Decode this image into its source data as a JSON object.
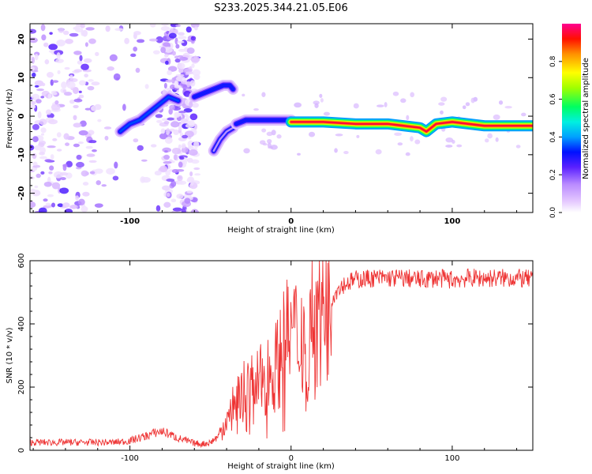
{
  "title": "S233.2025.344.21.05.E06",
  "chart_data": [
    {
      "type": "heatmap",
      "name": "spectrogram",
      "xlabel": "Height of straight line (km)",
      "ylabel": "Frequency (Hz)",
      "xlim": [
        -162,
        150
      ],
      "ylim": [
        -25,
        24
      ],
      "xticks": [
        -100,
        0,
        100
      ],
      "yticks": [
        -20,
        -10,
        0,
        10,
        20
      ],
      "colorbar": {
        "label": "Normalized spectral amplitude",
        "range": [
          0,
          1
        ],
        "ticks": [
          0.0,
          0.2,
          0.4,
          0.6,
          0.8
        ],
        "tick_labels": [
          "0.0",
          "0.2",
          "0.4",
          "0.6",
          "0.8"
        ]
      },
      "ridge_segments": [
        {
          "x": [
            -106,
            -100,
            -94,
            -88,
            -82,
            -76,
            -70
          ],
          "y": [
            -4,
            -2,
            -1,
            1,
            3,
            5,
            4
          ],
          "amp": 0.35
        },
        {
          "x": [
            -60,
            -54,
            -48,
            -42,
            -38,
            -36
          ],
          "y": [
            5,
            6,
            7,
            8,
            8,
            7
          ],
          "amp": 0.3
        },
        {
          "x": [
            -48,
            -44,
            -40,
            -36
          ],
          "y": [
            -9,
            -6,
            -4,
            -3
          ],
          "amp": 0.15
        },
        {
          "x": [
            -34,
            -28,
            -22,
            -16,
            -10,
            -4,
            0
          ],
          "y": [
            -2,
            -1,
            -1,
            -1,
            -1,
            -1,
            -1
          ],
          "amp": 0.3
        },
        {
          "x": [
            0,
            20,
            40,
            60,
            70,
            80,
            84,
            90,
            100,
            120,
            150
          ],
          "y": [
            -1.5,
            -1.5,
            -2,
            -2,
            -2.5,
            -3,
            -4,
            -2,
            -1.5,
            -2.5,
            -2.5
          ],
          "amp": 0.95
        }
      ],
      "noise_region_x": [
        -162,
        -58
      ]
    },
    {
      "type": "line",
      "name": "snr",
      "xlabel": "Height of straight line (km)",
      "ylabel": "SNR (10 * v/v)",
      "xlim": [
        -162,
        150
      ],
      "ylim": [
        0,
        600
      ],
      "xticks": [
        -100,
        0,
        100
      ],
      "yticks": [
        0,
        200,
        400,
        600
      ],
      "color": "#ee3333",
      "series": [
        {
          "name": "SNR",
          "x": [
            -162,
            -150,
            -140,
            -130,
            -120,
            -110,
            -100,
            -95,
            -90,
            -85,
            -80,
            -75,
            -70,
            -65,
            -60,
            -55,
            -50,
            -45,
            -40,
            -35,
            -30,
            -25,
            -20,
            -15,
            -10,
            -5,
            0,
            5,
            10,
            15,
            20,
            25,
            30,
            40,
            50,
            60,
            70,
            80,
            90,
            100,
            110,
            120,
            130,
            140,
            150
          ],
          "y": [
            25,
            25,
            25,
            25,
            25,
            25,
            30,
            38,
            45,
            55,
            60,
            50,
            38,
            30,
            22,
            20,
            25,
            45,
            100,
            150,
            190,
            200,
            210,
            240,
            260,
            320,
            380,
            350,
            400,
            440,
            460,
            480,
            520,
            540,
            545,
            545,
            545,
            540,
            545,
            540,
            545,
            545,
            545,
            545,
            540
          ]
        }
      ]
    }
  ]
}
